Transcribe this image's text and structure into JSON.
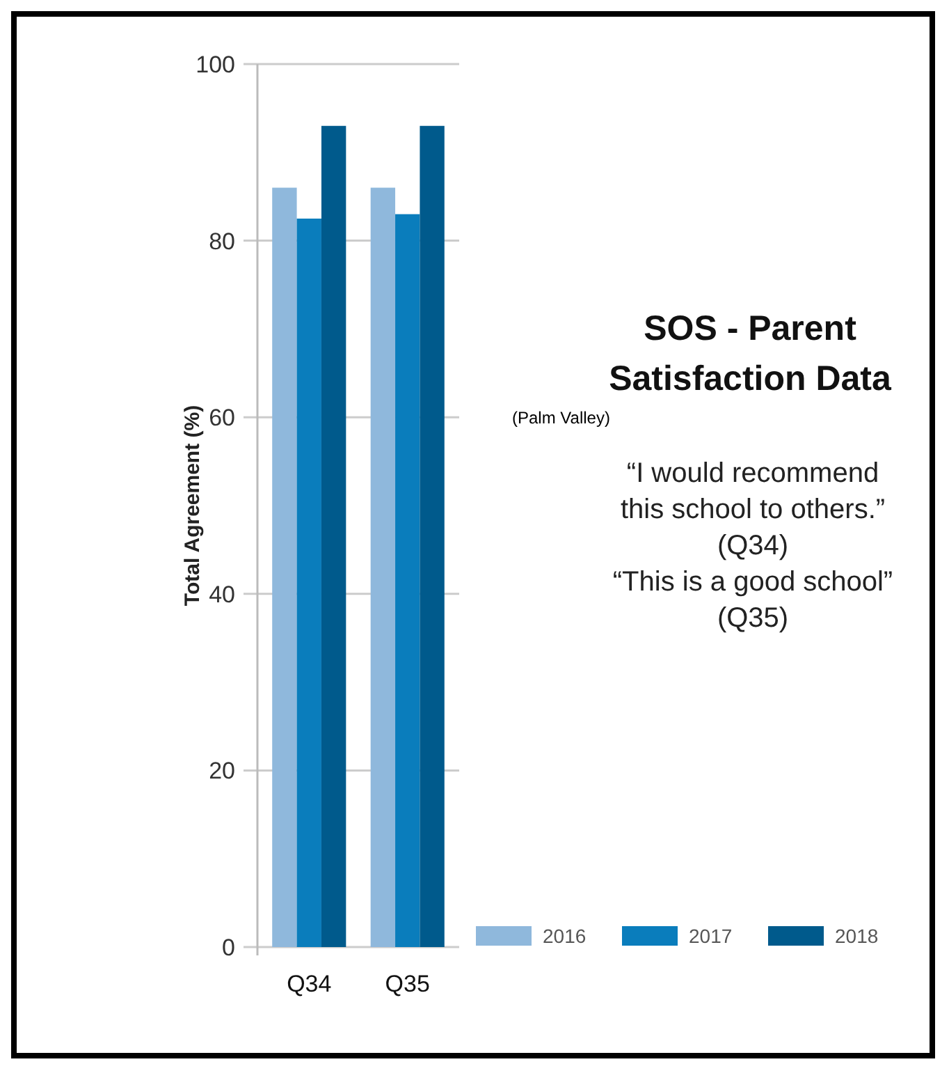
{
  "chart_data": {
    "type": "bar",
    "title": "SOS - Parent Satisfaction Data",
    "ylabel": "Total Agreement (%)",
    "categories": [
      "Q34",
      "Q35"
    ],
    "series": [
      {
        "name": "2016",
        "color": "#8fb8dc",
        "values": [
          86,
          86
        ]
      },
      {
        "name": "2017",
        "color": "#0a7dbc",
        "values": [
          82.5,
          83
        ]
      },
      {
        "name": "2018",
        "color": "#005a8c",
        "values": [
          93,
          93
        ]
      }
    ],
    "ylim": [
      0,
      100
    ],
    "yticks": [
      0,
      20,
      40,
      60,
      80,
      100
    ],
    "grid": "y",
    "legend": "bottom",
    "annotations": [
      "(Palm Valley)",
      "“I would recommend this school to others.”",
      "(Q34)",
      "“This is a good school”",
      "(Q35)"
    ]
  }
}
